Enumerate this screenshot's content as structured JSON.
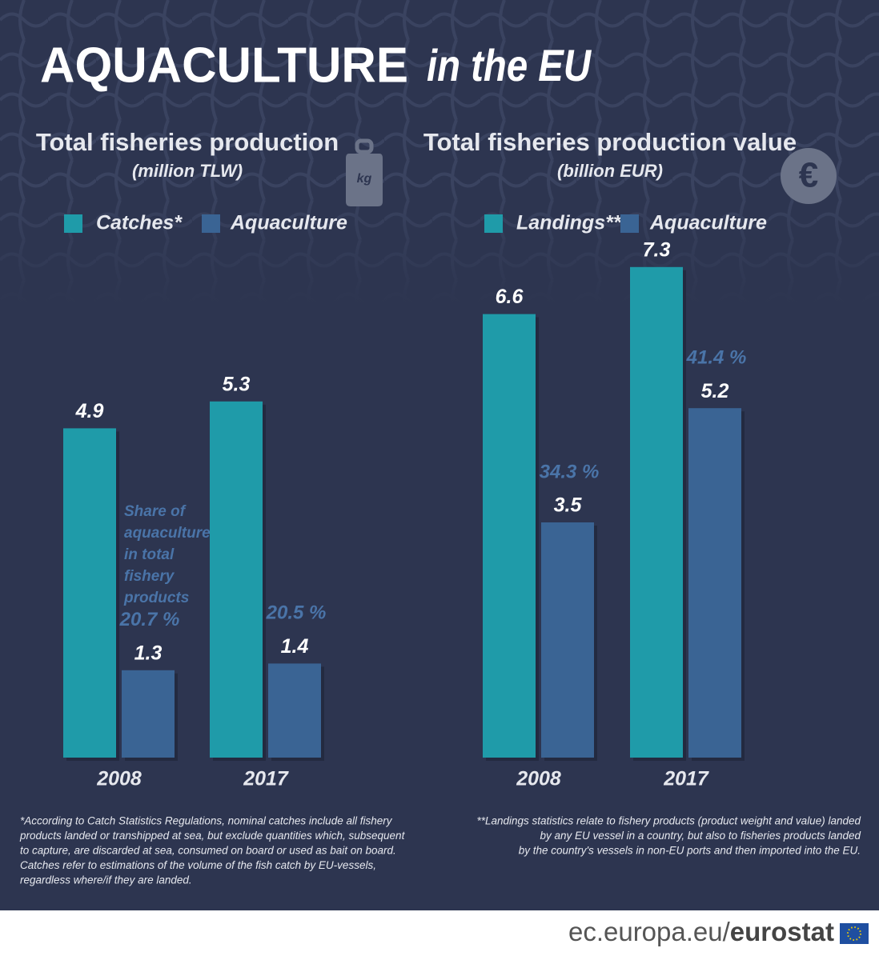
{
  "header": {
    "title": "AQUACULTURE",
    "subtitle": "in the EU"
  },
  "chart_data": [
    {
      "type": "bar",
      "title": "Total fisheries production",
      "subtitle": "(million TLW)",
      "icon_label": "kg",
      "categories": [
        "2008",
        "2017"
      ],
      "series": [
        {
          "name": "Catches*",
          "color": "#1f9ba9",
          "values": [
            4.9,
            5.3
          ]
        },
        {
          "name": "Aquaculture",
          "color": "#3a6494",
          "values": [
            1.3,
            1.4
          ],
          "share_labels": [
            "20.7 %",
            "20.5 %"
          ]
        }
      ],
      "note_lines": [
        "Share of",
        "aquaculture",
        "in total",
        "fishery",
        "products"
      ]
    },
    {
      "type": "bar",
      "title": "Total fisheries production value",
      "subtitle": "(billion EUR)",
      "icon_label": "€",
      "categories": [
        "2008",
        "2017"
      ],
      "series": [
        {
          "name": "Landings**",
          "color": "#1f9ba9",
          "values": [
            6.6,
            7.3
          ]
        },
        {
          "name": "Aquaculture",
          "color": "#3a6494",
          "values": [
            3.5,
            5.2
          ],
          "share_labels": [
            "34.3 %",
            "41.4 %"
          ]
        }
      ]
    }
  ],
  "footnotes": [
    [
      "*According to Catch Statistics Regulations, nominal catches include all fishery",
      "products landed or transhipped at sea, but exclude quantities which, subsequent",
      "to capture, are discarded at sea, consumed on board or used as bait on board.",
      "Catches refer to estimations of the volume of the fish catch by EU-vessels,",
      "regardless where/if they are landed."
    ],
    [
      "**Landings statistics relate to fishery products (product weight and value) landed",
      "by any EU vessel in a country, but also to fisheries products landed",
      "by the country's vessels in non-EU ports and then imported into the EU."
    ]
  ],
  "footer": {
    "site": "ec.europa.eu/",
    "brand": "eurostat"
  }
}
